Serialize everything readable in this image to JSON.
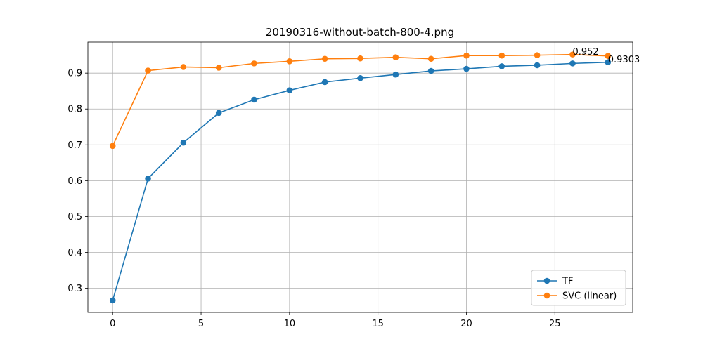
{
  "chart_data": {
    "type": "line",
    "title": "20190316-without-batch-800-4.png",
    "xlabel": "",
    "ylabel": "",
    "xlim": [
      -1.4,
      29.4
    ],
    "ylim": [
      0.2325,
      0.9865
    ],
    "xticks": [
      0,
      5,
      10,
      15,
      20,
      25
    ],
    "yticks": [
      0.3,
      0.4,
      0.5,
      0.6,
      0.7,
      0.8,
      0.9
    ],
    "grid": true,
    "legend_position": "lower-right",
    "x": [
      0,
      2,
      4,
      6,
      8,
      10,
      12,
      14,
      16,
      18,
      20,
      22,
      24,
      26,
      28
    ],
    "series": [
      {
        "name": "TF",
        "color": "#1f77b4",
        "marker": "circle",
        "values": [
          0.266,
          0.606,
          0.706,
          0.789,
          0.826,
          0.852,
          0.875,
          0.886,
          0.896,
          0.906,
          0.912,
          0.919,
          0.922,
          0.927,
          0.9303
        ]
      },
      {
        "name": "SVC (linear)",
        "color": "#ff7f0e",
        "marker": "circle",
        "values": [
          0.697,
          0.907,
          0.917,
          0.915,
          0.927,
          0.933,
          0.94,
          0.941,
          0.944,
          0.94,
          0.949,
          0.949,
          0.95,
          0.952,
          0.948
        ]
      }
    ],
    "annotations": [
      {
        "text": "0.952",
        "x": 26,
        "y": 0.952
      },
      {
        "text": "0.9303",
        "x": 28,
        "y": 0.9303
      }
    ]
  }
}
